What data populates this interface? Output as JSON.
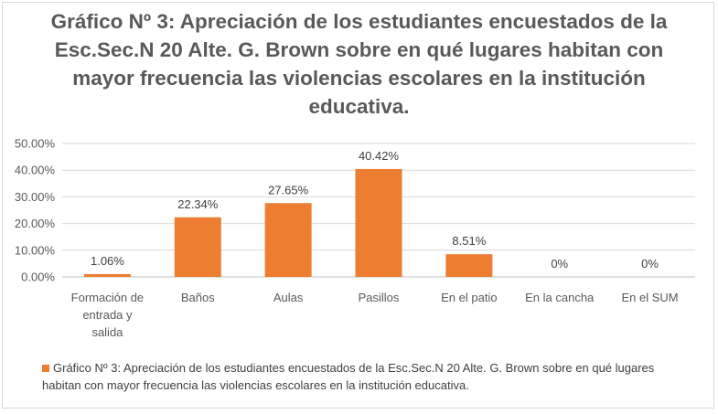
{
  "chart_data": {
    "type": "bar",
    "title": "Gráfico Nº 3: Apreciación de los estudiantes encuestados de la Esc.Sec.N 20 Alte. G. Brown sobre en qué lugares habitan con mayor frecuencia las violencias escolares en la institución educativa.",
    "categories": [
      "Formación de entrada y salida",
      "Baños",
      "Aulas",
      "Pasillos",
      "En el patio",
      "En la cancha",
      "En el SUM"
    ],
    "series": [
      {
        "name": "Gráfico Nº 3: Apreciación de los estudiantes encuestados de la Esc.Sec.N 20 Alte. G. Brown sobre en qué lugares habitan con mayor frecuencia las violencias escolares en la institución educativa.",
        "values": [
          1.06,
          22.34,
          27.65,
          40.42,
          8.51,
          0,
          0
        ],
        "data_labels": [
          "1.06%",
          "22.34%",
          "27.65%",
          "40.42%",
          "8.51%",
          "0%",
          "0%"
        ]
      }
    ],
    "ylim": [
      0,
      50
    ],
    "yticks": [
      "0.00%",
      "10.00%",
      "20.00%",
      "30.00%",
      "40.00%",
      "50.00%"
    ],
    "gridlines": true,
    "legend_position": "bottom",
    "colors": {
      "bar": "#ed7d31",
      "grid": "#d9d9d9",
      "text": "#595959"
    }
  }
}
